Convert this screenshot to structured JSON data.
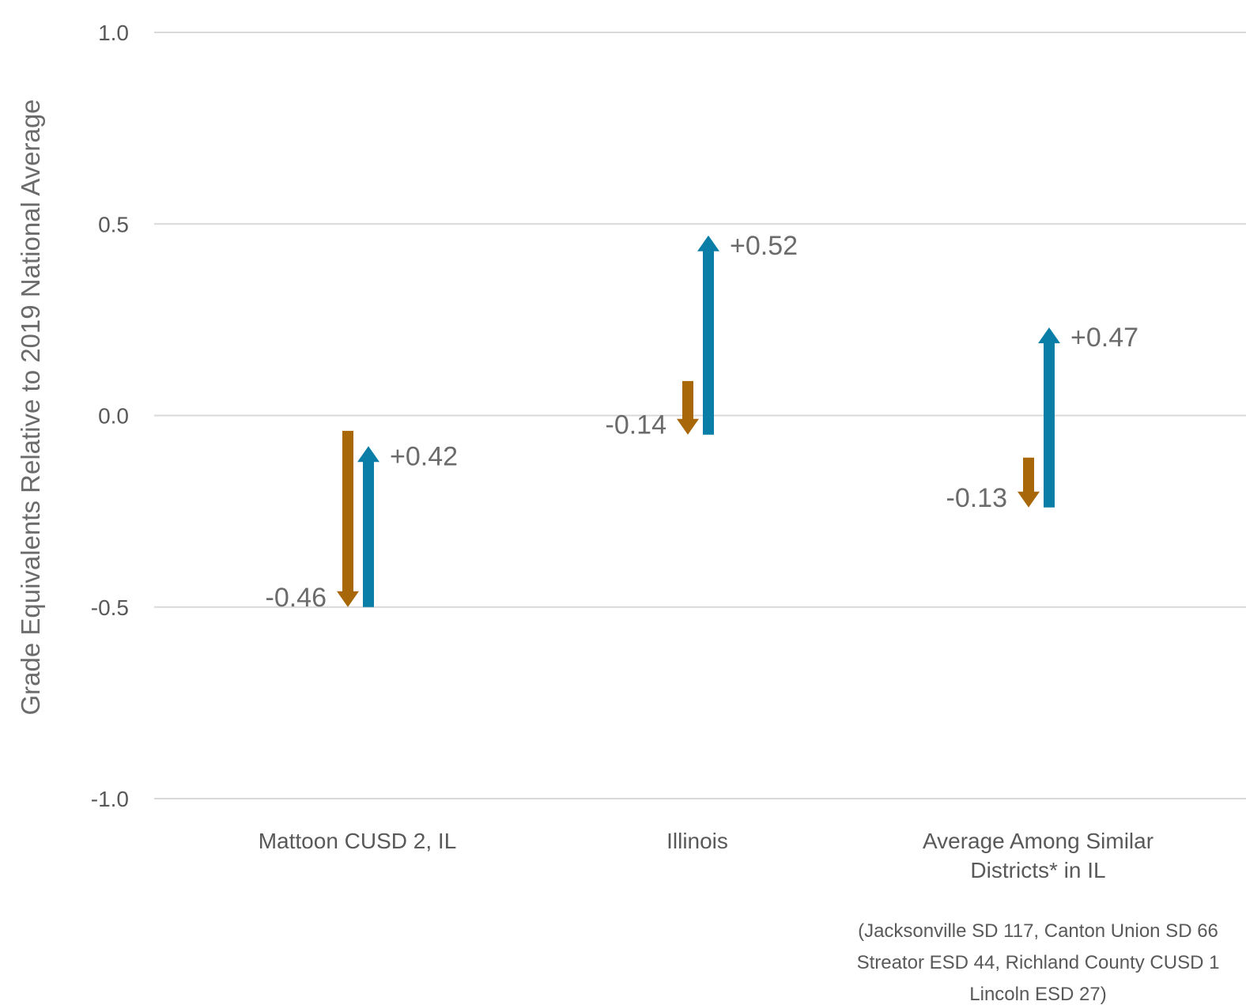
{
  "chart_data": {
    "type": "bar",
    "ylabel": "Grade Equivalents Relative to 2019 National Average",
    "ylim": [
      -1.0,
      1.0
    ],
    "y_ticks": [
      "1.0",
      "0.5",
      "0.0",
      "-0.5",
      "-1.0"
    ],
    "y_tick_values": [
      1.0,
      0.5,
      0.0,
      -0.5,
      -1.0
    ],
    "grid": true,
    "categories": [
      [
        "Mattoon CUSD 2, IL"
      ],
      [
        "Illinois"
      ],
      [
        "Average Among Similar",
        "Districts* in IL"
      ]
    ],
    "series": [
      {
        "color": "#a8680a",
        "direction": "down",
        "start": [
          -0.04,
          0.09,
          -0.11
        ],
        "end": [
          -0.5,
          -0.05,
          -0.24
        ],
        "labels": [
          "-0.46",
          "-0.14",
          "-0.13"
        ]
      },
      {
        "color": "#0b7ea8",
        "direction": "up",
        "start": [
          -0.5,
          -0.05,
          -0.24
        ],
        "end": [
          -0.08,
          0.47,
          0.23
        ],
        "labels": [
          "+0.42",
          "+0.52",
          "+0.47"
        ]
      }
    ],
    "footnote": [
      "(Jacksonville SD 117, Canton Union SD 66",
      "Streator ESD 44, Richland County CUSD 1",
      "Lincoln ESD 27)"
    ]
  }
}
